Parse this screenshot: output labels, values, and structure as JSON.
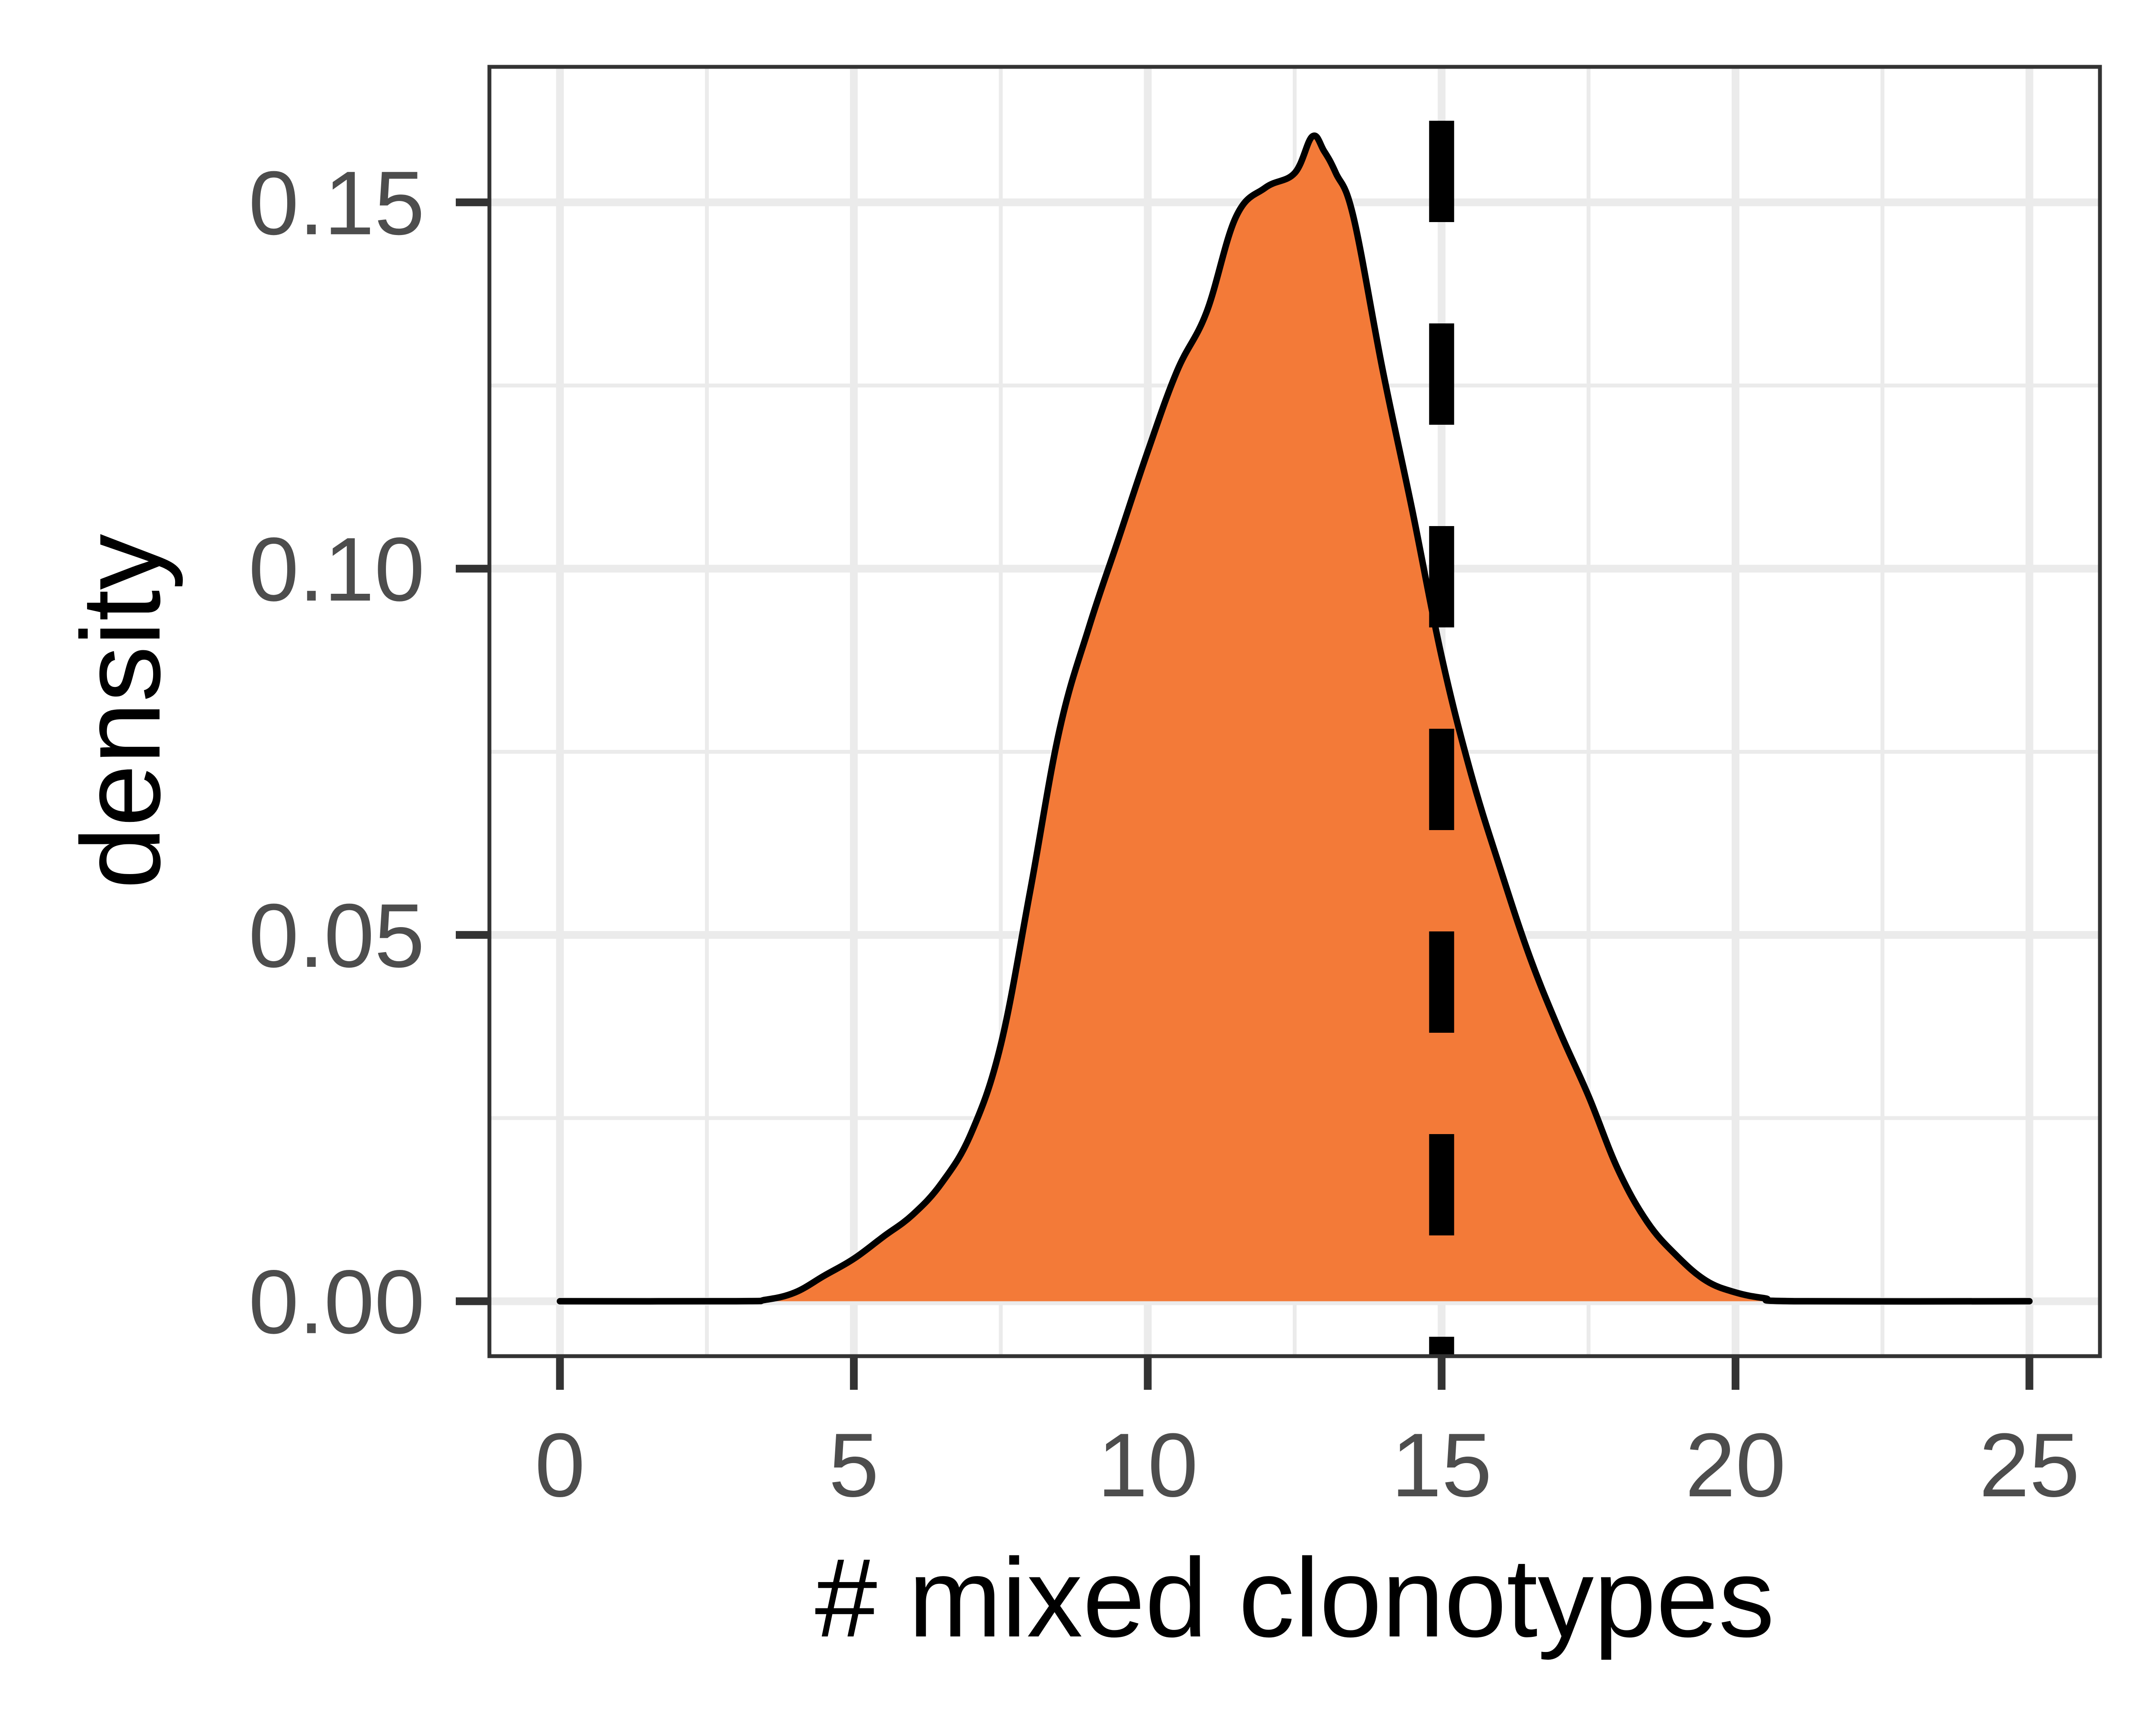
{
  "chart_data": {
    "type": "area",
    "title": "",
    "xlabel": "# mixed clonotypes",
    "ylabel": "density",
    "xlim": [
      -1.2,
      26.2
    ],
    "ylim": [
      -0.0075,
      0.1685
    ],
    "x_ticks": [
      0,
      5,
      10,
      15,
      20,
      25
    ],
    "x_tick_labels": [
      "0",
      "5",
      "10",
      "15",
      "20",
      "25"
    ],
    "y_ticks": [
      0.0,
      0.05,
      0.1,
      0.15
    ],
    "y_tick_labels": [
      "0.00",
      "0.05",
      "0.10",
      "0.15"
    ],
    "grid": true,
    "legend": "none",
    "fill_color": "#F37A38",
    "line_color": "#000000",
    "grid_color": "#EBEBEB",
    "axis_color": "#333333",
    "reference_line": {
      "x": 15,
      "style": "dashed",
      "color": "#000000"
    },
    "series": [
      {
        "x": [
          0,
          3.0,
          3.5,
          4.0,
          4.5,
          5.0,
          5.5,
          6.0,
          6.5,
          7.0,
          7.5,
          8.0,
          8.5,
          9.0,
          9.5,
          10.0,
          10.5,
          11.0,
          11.5,
          12.0,
          12.5,
          12.8,
          13.0,
          13.2,
          13.5,
          14.0,
          14.5,
          15.0,
          15.5,
          16.0,
          16.5,
          17.0,
          17.5,
          18.0,
          18.5,
          19.0,
          19.5,
          20.0,
          20.5,
          21.0,
          25.0
        ],
        "y": [
          0.0,
          0.0,
          0.0002,
          0.0012,
          0.0035,
          0.0058,
          0.0088,
          0.0118,
          0.0162,
          0.023,
          0.035,
          0.056,
          0.078,
          0.092,
          0.104,
          0.116,
          0.127,
          0.135,
          0.148,
          0.152,
          0.154,
          0.159,
          0.157,
          0.154,
          0.148,
          0.127,
          0.108,
          0.088,
          0.072,
          0.059,
          0.047,
          0.037,
          0.028,
          0.018,
          0.0108,
          0.0062,
          0.0028,
          0.0012,
          0.0004,
          0.0,
          0.0
        ]
      }
    ]
  }
}
